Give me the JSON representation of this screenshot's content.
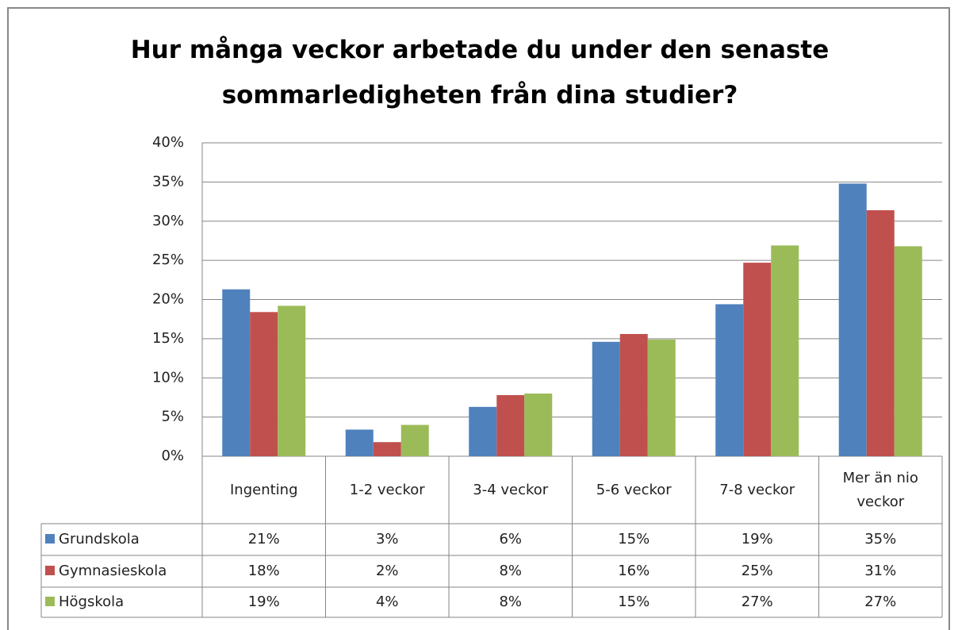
{
  "chart_data": {
    "type": "bar",
    "title": "Hur många veckor arbetade du under den senaste sommarledigheten från dina studier?",
    "categories": [
      "Ingenting",
      "1-2 veckor",
      "3-4 veckor",
      "5-6 veckor",
      "7-8 veckor",
      "Mer än nio veckor"
    ],
    "series": [
      {
        "name": "Grundskola",
        "color": "#4f81bd",
        "values": [
          21.3,
          3.4,
          6.3,
          14.6,
          19.4,
          34.8
        ],
        "value_labels": [
          "21%",
          "3%",
          "6%",
          "15%",
          "19%",
          "35%"
        ]
      },
      {
        "name": "Gymnasieskola",
        "color": "#c0504d",
        "values": [
          18.4,
          1.8,
          7.8,
          15.6,
          24.7,
          31.4
        ],
        "value_labels": [
          "18%",
          "2%",
          "8%",
          "16%",
          "25%",
          "31%"
        ]
      },
      {
        "name": "Högskola",
        "color": "#9bbb59",
        "values": [
          19.2,
          4.0,
          8.0,
          14.9,
          26.9,
          26.8
        ],
        "value_labels": [
          "19%",
          "4%",
          "8%",
          "15%",
          "27%",
          "27%"
        ]
      }
    ],
    "ylim": [
      0,
      40
    ],
    "yticks": [
      {
        "value": 0,
        "label": "0%"
      },
      {
        "value": 5,
        "label": "5%"
      },
      {
        "value": 10,
        "label": "10%"
      },
      {
        "value": 15,
        "label": "15%"
      },
      {
        "value": 20,
        "label": "20%"
      },
      {
        "value": 25,
        "label": "25%"
      },
      {
        "value": 30,
        "label": "30%"
      },
      {
        "value": 35,
        "label": "35%"
      },
      {
        "value": 40,
        "label": "40%"
      }
    ],
    "grid": true
  }
}
